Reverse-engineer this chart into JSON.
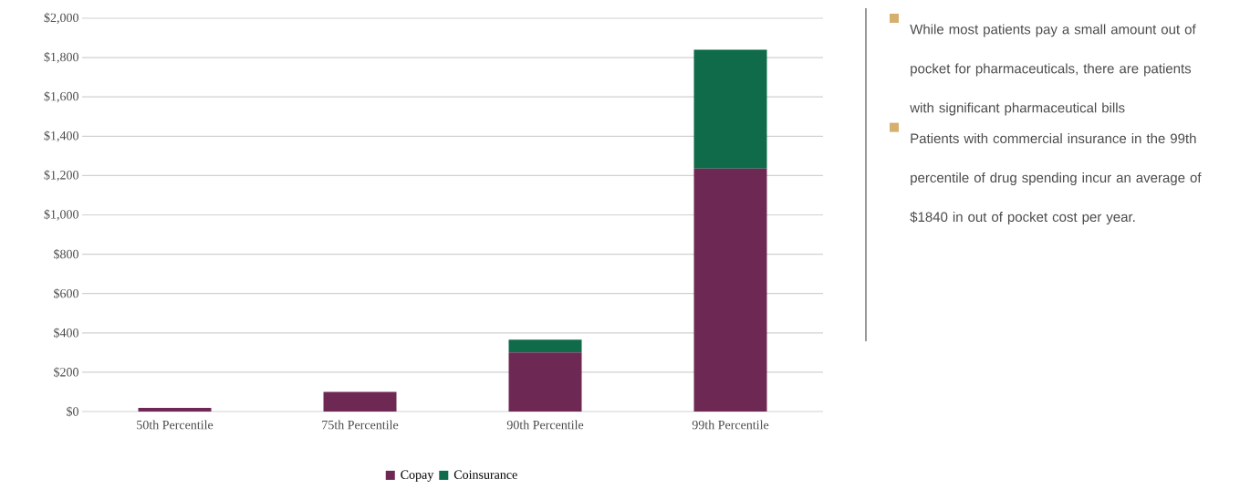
{
  "chart_data": {
    "type": "bar",
    "stacked": true,
    "categories": [
      "50th Percentile",
      "75th Percentile",
      "90th Percentile",
      "99th Percentile"
    ],
    "series": [
      {
        "name": "Copay",
        "color": "#6e2854",
        "values": [
          18,
          100,
          300,
          1235
        ]
      },
      {
        "name": "Coinsurance",
        "color": "#0f6b4a",
        "values": [
          0,
          null,
          65,
          605
        ]
      }
    ],
    "ylim": [
      0,
      2000
    ],
    "yticks": [
      {
        "value": 0,
        "label": "$0"
      },
      {
        "value": 200,
        "label": "$200"
      },
      {
        "value": 400,
        "label": "$400"
      },
      {
        "value": 600,
        "label": "$600"
      },
      {
        "value": 800,
        "label": "$800"
      },
      {
        "value": 1000,
        "label": "$1,000"
      },
      {
        "value": 1200,
        "label": "$1,200"
      },
      {
        "value": 1400,
        "label": "$1,400"
      },
      {
        "value": 1600,
        "label": "$1,600"
      },
      {
        "value": 1800,
        "label": "$1,800"
      },
      {
        "value": 2000,
        "label": "$2,000"
      }
    ],
    "grid": "y",
    "legend": "bottom",
    "annotations": [
      "While most patients pay a small amount out of pocket for pharmaceuticals, there are patients with significant pharmaceutical bills",
      "Patients with commercial insurance in the 99th percentile of drug spending incur an average of $1840 in out of pocket cost per year."
    ]
  }
}
